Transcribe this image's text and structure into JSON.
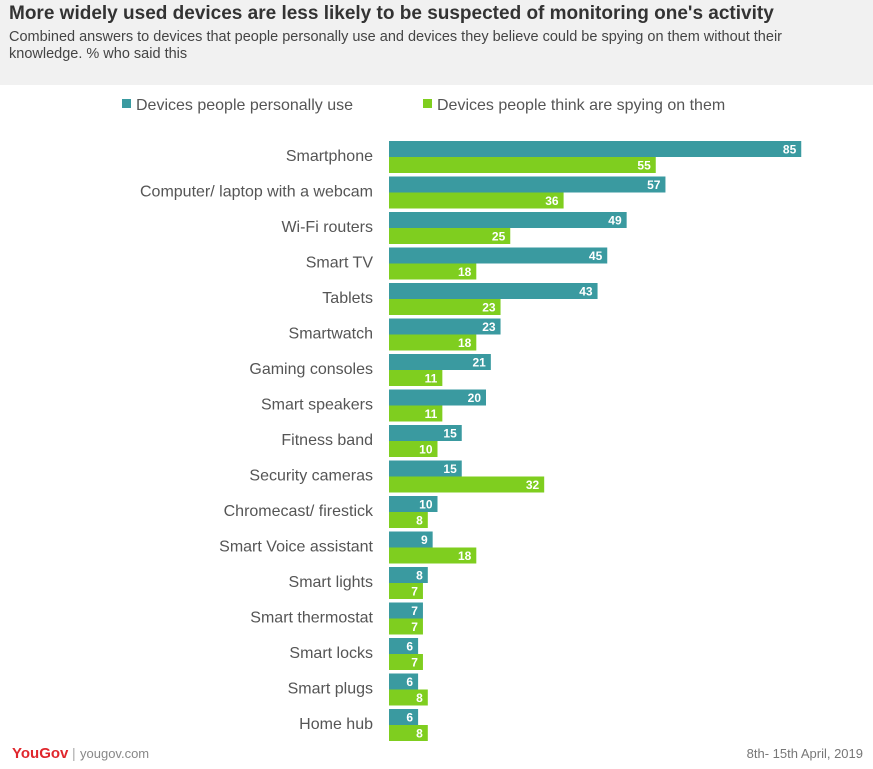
{
  "header": {
    "title": "More widely used devices are less likely to be suspected of monitoring one's activity",
    "subtitle": "Combined answers to devices that people personally use and devices they believe could be spying on them without their knowledge. % who said this"
  },
  "footer": {
    "logo": "YouGov",
    "site": "yougov.com",
    "date": "8th- 15th April,  2019"
  },
  "chart_data": {
    "type": "bar",
    "orientation": "horizontal",
    "title": "More widely used devices are less likely to be suspected of monitoring one's activity",
    "legend_position": "top",
    "categories": [
      "Smartphone",
      "Computer/ laptop with a webcam",
      "Wi-Fi routers",
      "Smart TV",
      "Tablets",
      "Smartwatch",
      "Gaming consoles",
      "Smart speakers",
      "Fitness band",
      "Security cameras",
      "Chromecast/ firestick",
      "Smart Voice assistant",
      "Smart lights",
      "Smart thermostat",
      "Smart locks",
      "Smart plugs",
      "Home hub"
    ],
    "series": [
      {
        "name": "Devices people personally use",
        "color": "#3a9aa0",
        "values": [
          85,
          57,
          49,
          45,
          43,
          23,
          21,
          20,
          15,
          15,
          10,
          9,
          8,
          7,
          6,
          6,
          6
        ]
      },
      {
        "name": "Devices people think are spying on them",
        "color": "#7fce1f",
        "values": [
          55,
          36,
          25,
          18,
          23,
          18,
          11,
          11,
          10,
          32,
          8,
          18,
          7,
          7,
          7,
          8,
          8
        ]
      }
    ],
    "xlim": [
      0,
      100
    ],
    "grid": false
  }
}
